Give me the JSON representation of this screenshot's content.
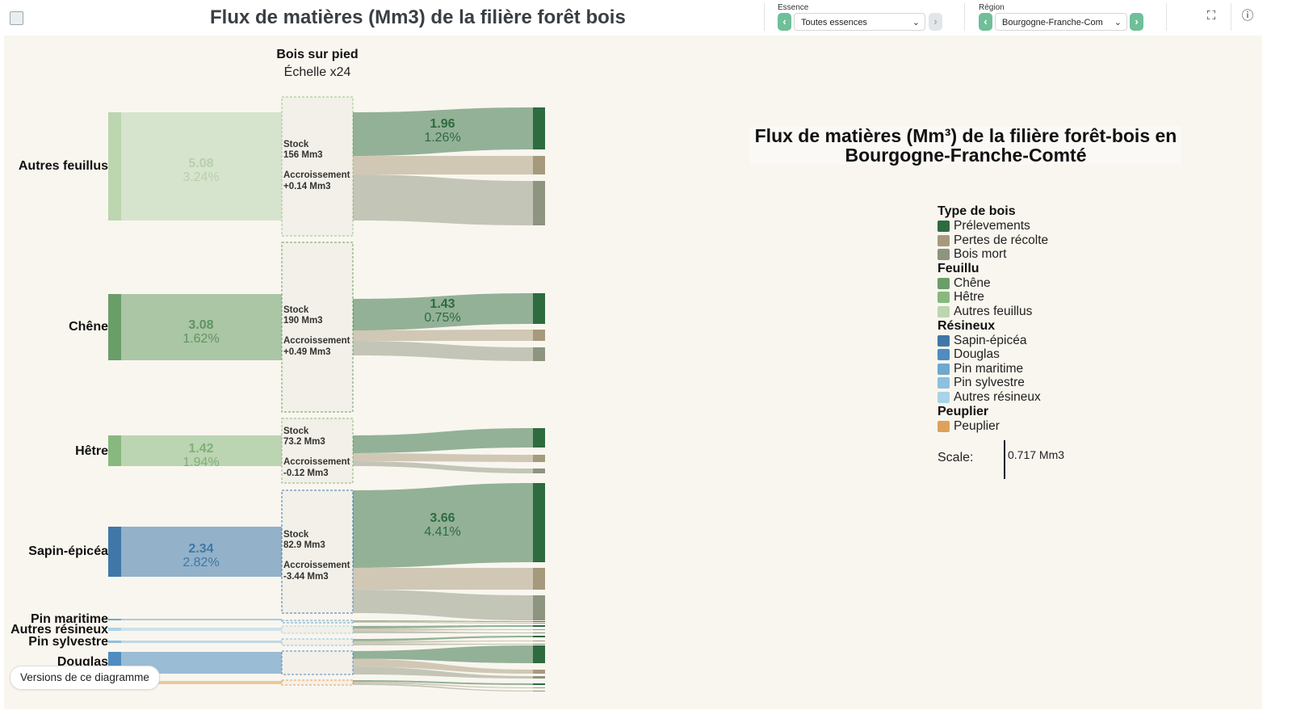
{
  "header": {
    "title": "Flux de matières (Mm3) de la filière forêt bois"
  },
  "essence": {
    "label": "Essence",
    "value": "Toutes essences"
  },
  "region": {
    "label": "Région",
    "value": "Bourgogne-Franche-Com"
  },
  "colors": {
    "background": "#f9f6ef",
    "accent": "#6fbf98",
    "prelevements": "#2e6b3f",
    "pertes": "#a79a7c",
    "bois_mort": "#8d9480",
    "chene": "#6a9e68",
    "hetre": "#89b87e",
    "autres_feuillus": "#bcd6b0",
    "sapin_epicea": "#3f78a8",
    "douglas": "#4f8cc0",
    "pin_maritime": "#6ea8d0",
    "pin_sylvestre": "#8cc0df",
    "autres_resineux": "#a9d3e8",
    "peuplier": "#dda25a"
  },
  "column": {
    "title": "Bois sur pied",
    "subtitle": "Échelle x24"
  },
  "labels": {
    "stock": "Stock",
    "accroissement": "Accroissement",
    "autres_feuillus": "Autres feuillus",
    "chene": "Chêne",
    "hetre": "Hêtre",
    "sapin_epicea": "Sapin-épicéa",
    "pin_maritime": "Pin maritime",
    "autres_resineux": "Autres résineux",
    "pin_sylvestre": "Pin sylvestre",
    "douglas": "Douglas"
  },
  "chart_data": {
    "type": "sankey",
    "title": "Flux de matières (Mm³) de la filière forêt-bois en Bourgogne-Franche-Comté",
    "legend": {
      "groups": [
        {
          "title": "Type de bois",
          "items": [
            {
              "label": "Prélevements",
              "color": "#2e6b3f"
            },
            {
              "label": "Pertes de récolte",
              "color": "#a79a7c"
            },
            {
              "label": "Bois mort",
              "color": "#8d9480"
            }
          ]
        },
        {
          "title": "Feuillu",
          "items": [
            {
              "label": "Chêne",
              "color": "#6a9e68"
            },
            {
              "label": "Hêtre",
              "color": "#89b87e"
            },
            {
              "label": "Autres feuillus",
              "color": "#bcd6b0"
            }
          ]
        },
        {
          "title": "Résineux",
          "items": [
            {
              "label": "Sapin-épicéa",
              "color": "#3f78a8"
            },
            {
              "label": "Douglas",
              "color": "#4f8cc0"
            },
            {
              "label": "Pin maritime",
              "color": "#6ea8d0"
            },
            {
              "label": "Pin sylvestre",
              "color": "#8cc0df"
            },
            {
              "label": "Autres résineux",
              "color": "#a9d3e8"
            }
          ]
        },
        {
          "title": "Peuplier",
          "items": [
            {
              "label": "Peuplier",
              "color": "#dda25a"
            }
          ]
        }
      ]
    },
    "scale": {
      "label": "Scale:",
      "value": "0.717 Mm3"
    },
    "species": [
      {
        "key": "autres_feuillus",
        "accroissement_value": "5.08",
        "accroissement_pct": "3.24%",
        "stock": "156 Mm3",
        "accroissement": "+0.14 Mm3",
        "prelevements_value": "1.96",
        "prelevements_pct": "1.26%"
      },
      {
        "key": "chene",
        "accroissement_value": "3.08",
        "accroissement_pct": "1.62%",
        "stock": "190 Mm3",
        "accroissement": "+0.49 Mm3",
        "prelevements_value": "1.43",
        "prelevements_pct": "0.75%"
      },
      {
        "key": "hetre",
        "accroissement_value": "1.42",
        "accroissement_pct": "1.94%",
        "stock": "73.2 Mm3",
        "accroissement": "-0.12 Mm3"
      },
      {
        "key": "sapin_epicea",
        "accroissement_value": "2.34",
        "accroissement_pct": "2.82%",
        "stock": "82.9 Mm3",
        "accroissement": "-3.44 Mm3",
        "prelevements_value": "3.66",
        "prelevements_pct": "4.41%"
      },
      {
        "key": "pin_maritime"
      },
      {
        "key": "autres_resineux"
      },
      {
        "key": "pin_sylvestre"
      },
      {
        "key": "douglas"
      },
      {
        "key": "peuplier"
      }
    ]
  },
  "footer": {
    "versions_label": "Versions de ce diagramme"
  }
}
